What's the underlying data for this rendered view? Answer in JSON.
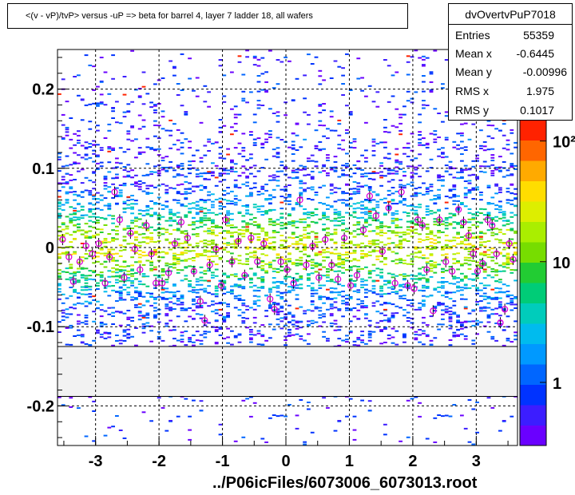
{
  "title": "<(v - vP)/tvP> versus  -uP => beta for barrel 4, layer 7 ladder 18, all wafers",
  "stats": {
    "name": "dvOvertvPuP7018",
    "rows": [
      {
        "key": "Entries",
        "value": "55359"
      },
      {
        "key": "Mean x",
        "value": "-0.6445"
      },
      {
        "key": "Mean y",
        "value": "-0.00996"
      },
      {
        "key": "RMS x",
        "value": "1.975"
      },
      {
        "key": "RMS y",
        "value": "0.1017"
      }
    ]
  },
  "footer": "../P06icFiles/6073006_6073013.root",
  "chart_data": {
    "type": "heatmap",
    "title": "<(v - vP)/tvP> versus  -uP => beta for barrel 4, layer 7 ladder 18, all wafers",
    "xlabel": "",
    "ylabel": "",
    "xlim": [
      -3.6,
      3.65
    ],
    "ylim": [
      -0.25,
      0.25
    ],
    "x_ticks": [
      -3,
      -2,
      -1,
      0,
      1,
      2,
      3
    ],
    "x_tick_labels": [
      "-3",
      "-2",
      "-1",
      "0",
      "1",
      "2",
      "3"
    ],
    "y_ticks": [
      -0.2,
      -0.1,
      0,
      0.1,
      0.2
    ],
    "y_tick_labels": [
      "-0.2",
      "-0.1",
      "0",
      "0.1",
      "0.2"
    ],
    "grid": true,
    "empty_band_y": [
      -0.188,
      -0.125
    ],
    "color_scale": "log",
    "colorbar_range": [
      0.3,
      150
    ],
    "colorbar_ticks": [
      1,
      10,
      100
    ],
    "colorbar_tick_labels": [
      "1",
      "10",
      "10²"
    ],
    "colors": [
      "#6a00ff",
      "#3c1dff",
      "#0033ff",
      "#0066ff",
      "#0099ff",
      "#00bbee",
      "#00ccbb",
      "#00cc77",
      "#22cc33",
      "#77dd00",
      "#aaee00",
      "#ddee00",
      "#ffdd00",
      "#ffaa00",
      "#ff6600",
      "#ff2200"
    ],
    "profile_points": [
      {
        "x": -3.52,
        "y": 0.01
      },
      {
        "x": -3.42,
        "y": -0.012
      },
      {
        "x": -3.35,
        "y": -0.043
      },
      {
        "x": -3.25,
        "y": -0.018
      },
      {
        "x": -3.15,
        "y": 0.002
      },
      {
        "x": -3.05,
        "y": -0.008
      },
      {
        "x": -2.95,
        "y": 0.005
      },
      {
        "x": -2.85,
        "y": -0.045
      },
      {
        "x": -2.78,
        "y": -0.012
      },
      {
        "x": -2.7,
        "y": 0.07
      },
      {
        "x": -2.62,
        "y": 0.035
      },
      {
        "x": -2.55,
        "y": -0.038
      },
      {
        "x": -2.45,
        "y": 0.018
      },
      {
        "x": -2.38,
        "y": -0.002
      },
      {
        "x": -2.3,
        "y": -0.028
      },
      {
        "x": -2.2,
        "y": 0.028
      },
      {
        "x": -2.12,
        "y": -0.008
      },
      {
        "x": -2.05,
        "y": -0.045
      },
      {
        "x": -1.95,
        "y": -0.045
      },
      {
        "x": -1.85,
        "y": -0.032
      },
      {
        "x": -1.75,
        "y": 0.005
      },
      {
        "x": -1.65,
        "y": 0.032
      },
      {
        "x": -1.55,
        "y": 0.012
      },
      {
        "x": -1.45,
        "y": -0.03
      },
      {
        "x": -1.35,
        "y": -0.068
      },
      {
        "x": -1.28,
        "y": -0.092
      },
      {
        "x": -1.2,
        "y": -0.022
      },
      {
        "x": -1.1,
        "y": -0.002
      },
      {
        "x": -1.02,
        "y": -0.048
      },
      {
        "x": -0.95,
        "y": 0.035
      },
      {
        "x": -0.85,
        "y": -0.018
      },
      {
        "x": -0.75,
        "y": 0.008
      },
      {
        "x": -0.65,
        "y": -0.035
      },
      {
        "x": -0.55,
        "y": 0.012
      },
      {
        "x": -0.45,
        "y": -0.018
      },
      {
        "x": -0.35,
        "y": 0.005
      },
      {
        "x": -0.25,
        "y": -0.065
      },
      {
        "x": -0.18,
        "y": -0.078
      },
      {
        "x": -0.08,
        "y": -0.018
      },
      {
        "x": 0.02,
        "y": -0.028
      },
      {
        "x": 0.12,
        "y": -0.045
      },
      {
        "x": 0.22,
        "y": 0.06
      },
      {
        "x": 0.32,
        "y": -0.022
      },
      {
        "x": 0.42,
        "y": 0.002
      },
      {
        "x": 0.52,
        "y": -0.038
      },
      {
        "x": 0.62,
        "y": 0.01
      },
      {
        "x": 0.72,
        "y": -0.022
      },
      {
        "x": 0.82,
        "y": -0.04
      },
      {
        "x": 0.92,
        "y": 0.012
      },
      {
        "x": 1.02,
        "y": -0.048
      },
      {
        "x": 1.12,
        "y": -0.035
      },
      {
        "x": 1.22,
        "y": 0.022
      },
      {
        "x": 1.32,
        "y": 0.065
      },
      {
        "x": 1.42,
        "y": 0.04
      },
      {
        "x": 1.52,
        "y": -0.005
      },
      {
        "x": 1.62,
        "y": 0.05
      },
      {
        "x": 1.72,
        "y": -0.045
      },
      {
        "x": 1.82,
        "y": 0.07
      },
      {
        "x": 1.92,
        "y": -0.048
      },
      {
        "x": 2.02,
        "y": -0.052
      },
      {
        "x": 2.08,
        "y": 0.035
      },
      {
        "x": 2.15,
        "y": 0.028
      },
      {
        "x": 2.22,
        "y": -0.028
      },
      {
        "x": 2.32,
        "y": -0.08
      },
      {
        "x": 2.42,
        "y": 0.035
      },
      {
        "x": 2.52,
        "y": -0.018
      },
      {
        "x": 2.62,
        "y": -0.03
      },
      {
        "x": 2.72,
        "y": 0.048
      },
      {
        "x": 2.8,
        "y": 0.032
      },
      {
        "x": 2.88,
        "y": 0.015
      },
      {
        "x": 2.95,
        "y": -0.008
      },
      {
        "x": 3.02,
        "y": -0.03
      },
      {
        "x": 3.1,
        "y": -0.02
      },
      {
        "x": 3.18,
        "y": 0.035
      },
      {
        "x": 3.25,
        "y": 0.028
      },
      {
        "x": 3.32,
        "y": -0.008
      },
      {
        "x": 3.38,
        "y": -0.095
      },
      {
        "x": 3.45,
        "y": -0.078
      },
      {
        "x": 3.52,
        "y": 0.005
      },
      {
        "x": 3.58,
        "y": -0.015
      }
    ]
  }
}
